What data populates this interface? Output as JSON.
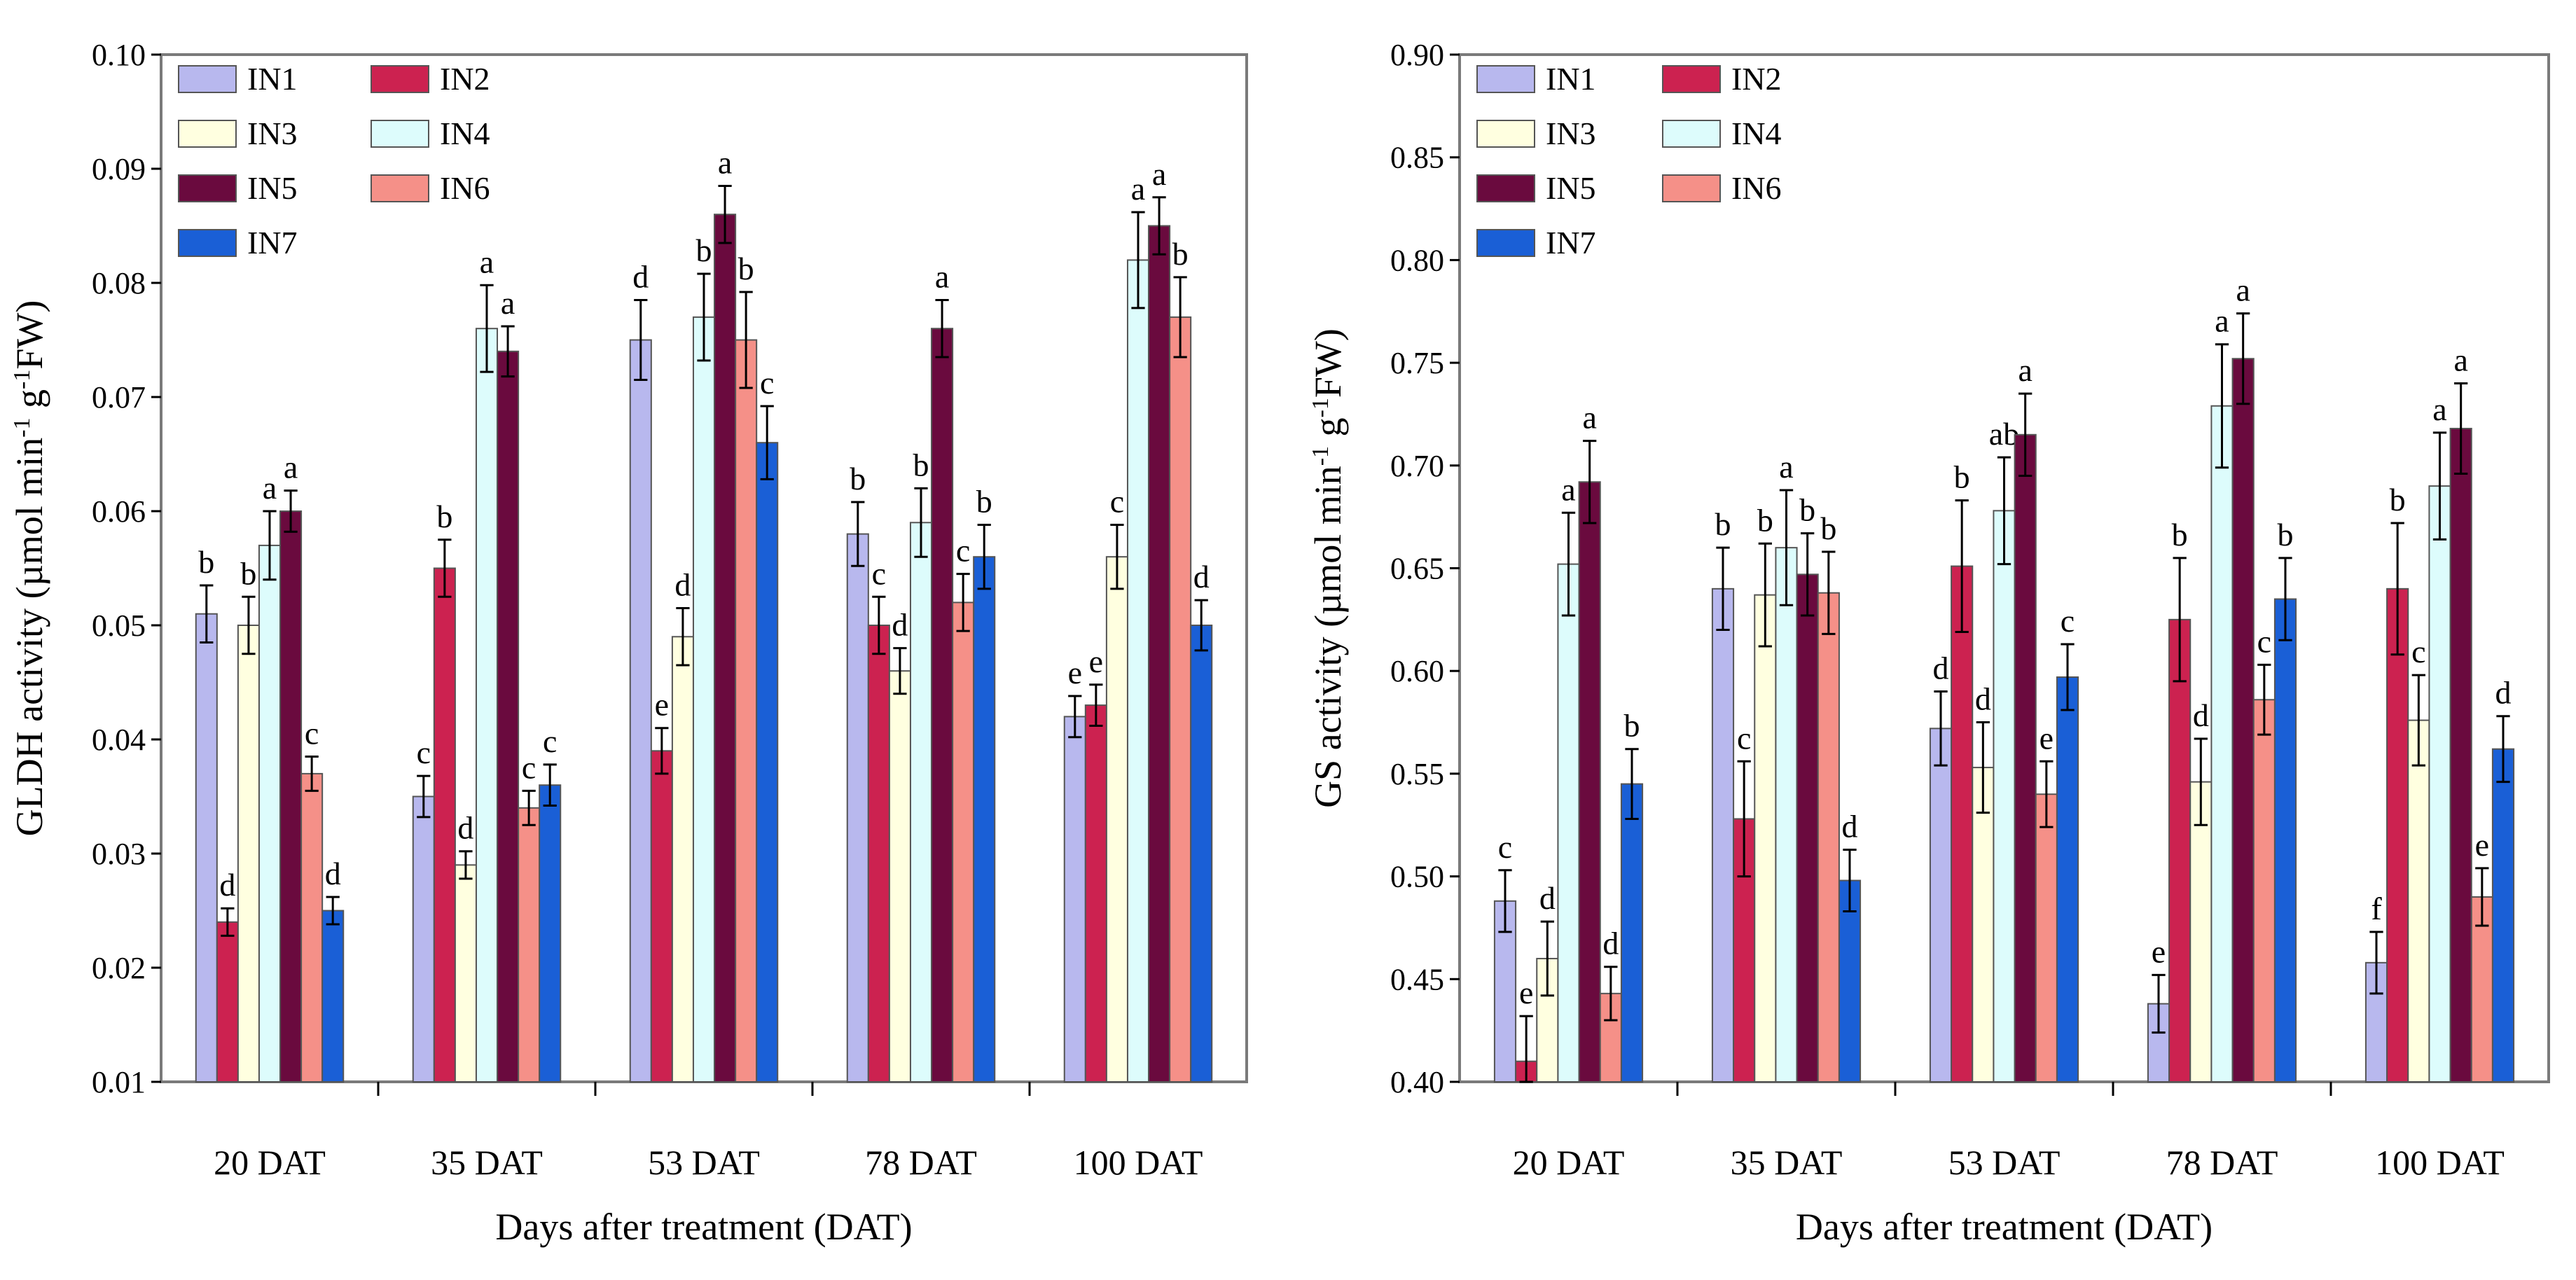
{
  "chart_data": [
    {
      "id": "gldh",
      "type": "bar",
      "title": "",
      "xlabel": "Days after treatment (DAT)",
      "ylabel_main": "GLDH activity (µmol min",
      "ylabel_sup1": "-1",
      "ylabel_mid": " g",
      "ylabel_sup2": "-1",
      "ylabel_end": "FW)",
      "ylim": [
        0.01,
        0.1
      ],
      "yticks": [
        0.01,
        0.02,
        0.03,
        0.04,
        0.05,
        0.06,
        0.07,
        0.08,
        0.09,
        0.1
      ],
      "ytick_labels": [
        "0.01",
        "0.02",
        "0.03",
        "0.04",
        "0.05",
        "0.06",
        "0.07",
        "0.08",
        "0.09",
        "0.10"
      ],
      "categories": [
        "20 DAT",
        "35 DAT",
        "53 DAT",
        "78 DAT",
        "100 DAT"
      ],
      "legend_position": "top-left",
      "series": [
        {
          "name": "IN1",
          "color": "#b8b8ee",
          "values": [
            0.051,
            0.035,
            0.075,
            0.058,
            0.042
          ],
          "errors": [
            0.0025,
            0.0018,
            0.0035,
            0.0028,
            0.0018
          ],
          "letters": [
            "b",
            "c",
            "d",
            "b",
            "e"
          ]
        },
        {
          "name": "IN2",
          "color": "#cc2250",
          "values": [
            0.024,
            0.055,
            0.039,
            0.05,
            0.043
          ],
          "errors": [
            0.0012,
            0.0025,
            0.002,
            0.0025,
            0.0018
          ],
          "letters": [
            "d",
            "b",
            "e",
            "c",
            "e"
          ]
        },
        {
          "name": "IN3",
          "color": "#ffffe0",
          "values": [
            0.05,
            0.029,
            0.049,
            0.046,
            0.056
          ],
          "errors": [
            0.0025,
            0.0012,
            0.0025,
            0.002,
            0.0028
          ],
          "letters": [
            "b",
            "d",
            "d",
            "d",
            "c"
          ]
        },
        {
          "name": "IN4",
          "color": "#ddfcfc",
          "values": [
            0.057,
            0.076,
            0.077,
            0.059,
            0.082
          ],
          "errors": [
            0.003,
            0.0038,
            0.0038,
            0.003,
            0.0042
          ],
          "letters": [
            "a",
            "a",
            "b",
            "b",
            "a"
          ]
        },
        {
          "name": "IN5",
          "color": "#6a0a3e",
          "values": [
            0.06,
            0.074,
            0.086,
            0.076,
            0.085
          ],
          "errors": [
            0.0018,
            0.0022,
            0.0025,
            0.0025,
            0.0025
          ],
          "letters": [
            "a",
            "a",
            "a",
            "a",
            "a"
          ]
        },
        {
          "name": "IN6",
          "color": "#f59088",
          "values": [
            0.037,
            0.034,
            0.075,
            0.052,
            0.077
          ],
          "errors": [
            0.0015,
            0.0015,
            0.0042,
            0.0025,
            0.0035
          ],
          "letters": [
            "c",
            "c",
            "b",
            "c",
            "b"
          ]
        },
        {
          "name": "IN7",
          "color": "#1a5fd6",
          "values": [
            0.025,
            0.036,
            0.066,
            0.056,
            0.05
          ],
          "errors": [
            0.0012,
            0.0018,
            0.0032,
            0.0028,
            0.0022
          ],
          "letters": [
            "d",
            "c",
            "c",
            "b",
            "d"
          ]
        }
      ]
    },
    {
      "id": "gs",
      "type": "bar",
      "title": "",
      "xlabel": "Days after treatment (DAT)",
      "ylabel_main": "GS activity (µmol min",
      "ylabel_sup1": "-1",
      "ylabel_mid": " g",
      "ylabel_sup2": "-1",
      "ylabel_end": "FW)",
      "ylim": [
        0.4,
        0.9
      ],
      "yticks": [
        0.4,
        0.45,
        0.5,
        0.55,
        0.6,
        0.65,
        0.7,
        0.75,
        0.8,
        0.85,
        0.9
      ],
      "ytick_labels": [
        "0.40",
        "0.45",
        "0.50",
        "0.55",
        "0.60",
        "0.65",
        "0.70",
        "0.75",
        "0.80",
        "0.85",
        "0.90"
      ],
      "categories": [
        "20 DAT",
        "35 DAT",
        "53 DAT",
        "78 DAT",
        "100 DAT"
      ],
      "legend_position": "top-left",
      "series": [
        {
          "name": "IN1",
          "color": "#b8b8ee",
          "values": [
            0.488,
            0.64,
            0.572,
            0.438,
            0.458
          ],
          "errors": [
            0.015,
            0.02,
            0.018,
            0.014,
            0.015
          ],
          "letters": [
            "c",
            "b",
            "d",
            "e",
            "f"
          ]
        },
        {
          "name": "IN2",
          "color": "#cc2250",
          "values": [
            0.41,
            0.528,
            0.651,
            0.625,
            0.64
          ],
          "errors": [
            0.022,
            0.028,
            0.032,
            0.03,
            0.032
          ],
          "letters": [
            "e",
            "c",
            "b",
            "b",
            "b"
          ]
        },
        {
          "name": "IN3",
          "color": "#ffffe0",
          "values": [
            0.46,
            0.637,
            0.553,
            0.546,
            0.576
          ],
          "errors": [
            0.018,
            0.025,
            0.022,
            0.021,
            0.022
          ],
          "letters": [
            "d",
            "b",
            "d",
            "d",
            "c"
          ]
        },
        {
          "name": "IN4",
          "color": "#ddfcfc",
          "values": [
            0.652,
            0.66,
            0.678,
            0.729,
            0.69
          ],
          "errors": [
            0.025,
            0.028,
            0.026,
            0.03,
            0.026
          ],
          "letters": [
            "a",
            "a",
            "ab",
            "a",
            "a"
          ]
        },
        {
          "name": "IN5",
          "color": "#6a0a3e",
          "values": [
            0.692,
            0.647,
            0.715,
            0.752,
            0.718
          ],
          "errors": [
            0.02,
            0.02,
            0.02,
            0.022,
            0.022
          ],
          "letters": [
            "a",
            "b",
            "a",
            "a",
            "a"
          ]
        },
        {
          "name": "IN6",
          "color": "#f59088",
          "values": [
            0.443,
            0.638,
            0.54,
            0.586,
            0.49
          ],
          "errors": [
            0.013,
            0.02,
            0.016,
            0.017,
            0.014
          ],
          "letters": [
            "d",
            "b",
            "e",
            "c",
            "e"
          ]
        },
        {
          "name": "IN7",
          "color": "#1a5fd6",
          "values": [
            0.545,
            0.498,
            0.597,
            0.635,
            0.562
          ],
          "errors": [
            0.017,
            0.015,
            0.016,
            0.02,
            0.016
          ],
          "letters": [
            "b",
            "d",
            "c",
            "b",
            "d"
          ]
        }
      ]
    }
  ]
}
